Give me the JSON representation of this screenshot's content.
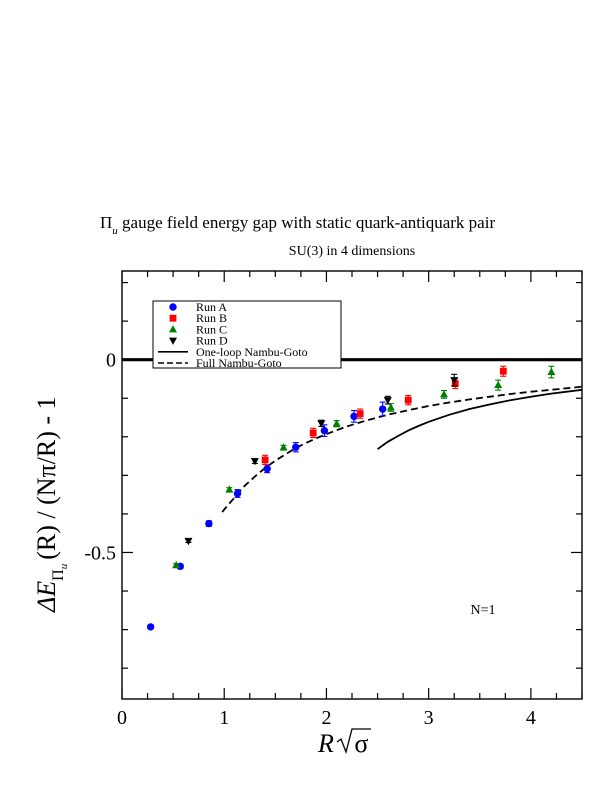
{
  "chart_data": {
    "type": "scatter",
    "title": {
      "prefix": "Π",
      "subscript": "u",
      "rest": " gauge field energy gap with static quark-antiquark pair"
    },
    "subtitle": "SU(3) in 4 dimensions",
    "xlabel": {
      "main": "R",
      "sqrt_arg": "σ"
    },
    "ylabel": {
      "delta_e": "ΔE",
      "sub_pi": "Π",
      "sub_u": "u",
      "rest": "(R) / (Nπ/R) - 1"
    },
    "xlim": [
      0,
      4.5
    ],
    "ylim": [
      -0.88,
      0.23
    ],
    "x_ticks": [
      0,
      1,
      2,
      3,
      4
    ],
    "x_tick_labels": [
      "0",
      "1",
      "2",
      "3",
      "4"
    ],
    "y_ticks": [
      -0.5,
      0
    ],
    "y_tick_labels": [
      "-0.5",
      "0"
    ],
    "annotation": "N=1",
    "legend_position": "top-left",
    "legend": [
      {
        "label": "Run A",
        "marker": "circle",
        "color": "#0000ff"
      },
      {
        "label": "Run B",
        "marker": "square",
        "color": "#ff0000"
      },
      {
        "label": "Run C",
        "marker": "triangle-up",
        "color": "#008000"
      },
      {
        "label": "Run D",
        "marker": "triangle-down",
        "color": "#000000"
      },
      {
        "label": "One-loop Nambu-Goto",
        "line": "solid",
        "color": "#000000"
      },
      {
        "label": "Full Nambu-Goto",
        "line": "dashed",
        "color": "#000000"
      }
    ],
    "series": [
      {
        "name": "Run A",
        "marker": "circle",
        "color": "#0000ff",
        "points": [
          {
            "x": 0.28,
            "y": -0.693,
            "err": 0.005
          },
          {
            "x": 0.57,
            "y": -0.536,
            "err": 0.006
          },
          {
            "x": 0.85,
            "y": -0.425,
            "err": 0.007
          },
          {
            "x": 1.13,
            "y": -0.347,
            "err": 0.01
          },
          {
            "x": 1.42,
            "y": -0.283,
            "err": 0.01
          },
          {
            "x": 1.7,
            "y": -0.227,
            "err": 0.012
          },
          {
            "x": 1.98,
            "y": -0.184,
            "err": 0.015
          },
          {
            "x": 2.27,
            "y": -0.147,
            "err": 0.015
          },
          {
            "x": 2.55,
            "y": -0.128,
            "err": 0.018
          }
        ]
      },
      {
        "name": "Run B",
        "marker": "square",
        "color": "#ff0000",
        "points": [
          {
            "x": 1.4,
            "y": -0.26,
            "err": 0.012
          },
          {
            "x": 1.87,
            "y": -0.19,
            "err": 0.012
          },
          {
            "x": 2.33,
            "y": -0.14,
            "err": 0.012
          },
          {
            "x": 2.8,
            "y": -0.105,
            "err": 0.012
          },
          {
            "x": 3.26,
            "y": -0.062,
            "err": 0.013
          },
          {
            "x": 3.73,
            "y": -0.03,
            "err": 0.013
          }
        ]
      },
      {
        "name": "Run C",
        "marker": "triangle-up",
        "color": "#008000",
        "points": [
          {
            "x": 0.53,
            "y": -0.533,
            "err": 0.004
          },
          {
            "x": 1.05,
            "y": -0.337,
            "err": 0.005
          },
          {
            "x": 1.58,
            "y": -0.228,
            "err": 0.006
          },
          {
            "x": 2.1,
            "y": -0.166,
            "err": 0.008
          },
          {
            "x": 2.63,
            "y": -0.124,
            "err": 0.01
          },
          {
            "x": 3.15,
            "y": -0.09,
            "err": 0.01
          },
          {
            "x": 3.68,
            "y": -0.066,
            "err": 0.013
          },
          {
            "x": 4.2,
            "y": -0.032,
            "err": 0.015
          }
        ]
      },
      {
        "name": "Run D",
        "marker": "triangle-down",
        "color": "#000000",
        "points": [
          {
            "x": 0.65,
            "y": -0.47,
            "err": 0.004
          },
          {
            "x": 1.3,
            "y": -0.263,
            "err": 0.006
          },
          {
            "x": 1.95,
            "y": -0.165,
            "err": 0.008
          },
          {
            "x": 2.6,
            "y": -0.105,
            "err": 0.01
          },
          {
            "x": 3.25,
            "y": -0.053,
            "err": 0.015
          }
        ]
      }
    ],
    "curves": [
      {
        "name": "One-loop Nambu-Goto",
        "style": "solid",
        "color": "#000000",
        "x": [
          2.5,
          2.6,
          2.7,
          2.8,
          2.9,
          3.0,
          3.2,
          3.4,
          3.6,
          3.8,
          4.0,
          4.2,
          4.5
        ],
        "y": [
          -0.232,
          -0.213,
          -0.198,
          -0.184,
          -0.172,
          -0.161,
          -0.143,
          -0.128,
          -0.116,
          -0.105,
          -0.096,
          -0.088,
          -0.078
        ]
      },
      {
        "name": "Full Nambu-Goto",
        "style": "dashed",
        "color": "#000000",
        "x": [
          0.98,
          1.05,
          1.1,
          1.15,
          1.2,
          1.3,
          1.4,
          1.5,
          1.6,
          1.7,
          1.8,
          1.9,
          2.0,
          2.2,
          2.4,
          2.6,
          2.8,
          3.0,
          3.2,
          3.4,
          3.6,
          3.8,
          4.0,
          4.2,
          4.5
        ],
        "y": [
          -0.395,
          -0.373,
          -0.358,
          -0.342,
          -0.327,
          -0.303,
          -0.281,
          -0.262,
          -0.245,
          -0.229,
          -0.216,
          -0.204,
          -0.193,
          -0.173,
          -0.157,
          -0.143,
          -0.131,
          -0.12,
          -0.111,
          -0.103,
          -0.096,
          -0.089,
          -0.083,
          -0.078,
          -0.07
        ]
      }
    ],
    "reference_line": {
      "y": 0,
      "color": "#000000"
    }
  }
}
